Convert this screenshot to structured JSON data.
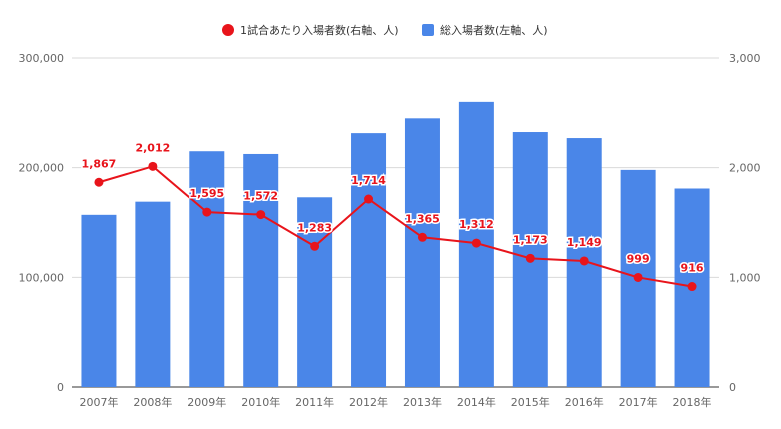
{
  "chart_data": {
    "type": "bar+line",
    "categories": [
      "2007年",
      "2008年",
      "2009年",
      "2010年",
      "2011年",
      "2012年",
      "2013年",
      "2014年",
      "2015年",
      "2016年",
      "2017年",
      "2018年"
    ],
    "series": [
      {
        "name": "1試合あたり入場者数(右軸、人)",
        "type": "line",
        "axis": "right",
        "color": "#e8141b",
        "values": [
          1867,
          2012,
          1595,
          1572,
          1283,
          1714,
          1365,
          1312,
          1173,
          1149,
          999,
          916
        ],
        "labels": [
          "1,867",
          "2,012",
          "1,595",
          "1,572",
          "1,283",
          "1,714",
          "1,365",
          "1,312",
          "1,173",
          "1,149",
          "999",
          "916"
        ]
      },
      {
        "name": "総入場者数(左軸、人)",
        "type": "bar",
        "axis": "left",
        "color": "#4a86e8",
        "values": [
          157000,
          169000,
          215000,
          212500,
          173000,
          231500,
          245000,
          260000,
          232500,
          227000,
          198000,
          181000
        ]
      }
    ],
    "y_left": {
      "min": 0,
      "max": 300000,
      "ticks": [
        "0",
        "100,000",
        "200,000",
        "300,000"
      ]
    },
    "y_right": {
      "min": 0,
      "max": 3000,
      "ticks": [
        "0",
        "1,000",
        "2,000",
        "3,000"
      ]
    },
    "grid": true,
    "legend_position": "top"
  }
}
